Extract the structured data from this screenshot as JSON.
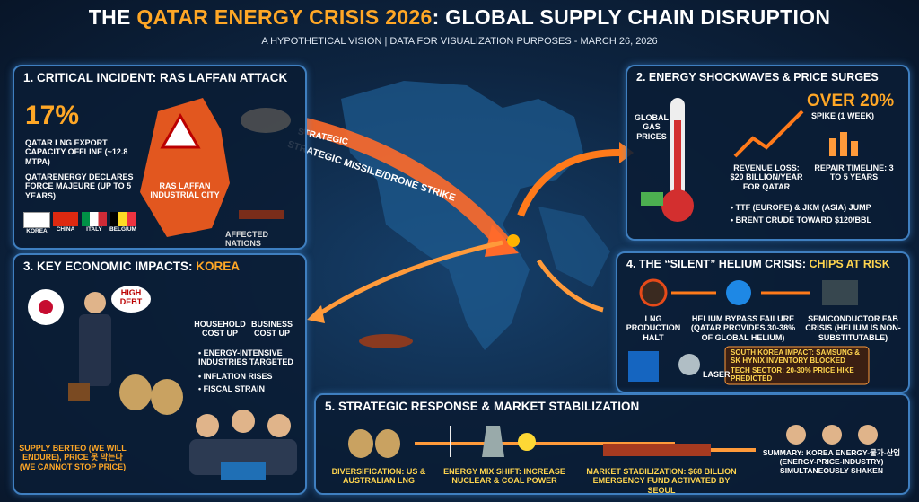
{
  "header": {
    "title_start": "THE ",
    "title_highlight": "QATAR ENERGY CRISIS 2026",
    "title_end": ": GLOBAL SUPPLY CHAIN DISRUPTION",
    "subtitle": "A HYPOTHETICAL VISION | DATA FOR VISUALIZATION PURPOSES - MARCH 26, 2026"
  },
  "map": {
    "label_small": "STRATEGIC",
    "label_main": "STRATEGIC MISSILE/DRONE STRIKE"
  },
  "panel1": {
    "heading": "1. CRITICAL INCIDENT: RAS LAFFAN ATTACK",
    "stat": "17%",
    "stat_label": "QATAR LNG EXPORT CAPACITY OFFLINE (~12.8 MTPA)",
    "force_majeure": "QATARENERGY DECLARES FORCE MAJEURE (UP TO 5 YEARS)",
    "city": "RAS LAFFAN INDUSTRIAL CITY",
    "affected": "AFFECTED NATIONS",
    "nations": [
      "KOREA",
      "CHINA",
      "ITALY",
      "BELGIUM"
    ]
  },
  "panel2": {
    "heading": "2. ENERGY SHOCKWAVES & PRICE SURGES",
    "gas_label": "GLOBAL GAS PRICES",
    "spike": "OVER 20%",
    "spike_label": "SPIKE (1 WEEK)",
    "revenue_loss": "REVENUE LOSS: $20 BILLION/YEAR FOR QATAR",
    "repair": "REPAIR TIMELINE: 3 TO 5 YEARS",
    "bullets": [
      "TTF (EUROPE) & JKM (ASIA) JUMP",
      "BRENT CRUDE TOWARD $120/BBL"
    ]
  },
  "panel3": {
    "heading_start": "3. KEY ECONOMIC IMPACTS: ",
    "heading_highlight": "KOREA",
    "high_debt": "HIGH DEBT",
    "household": "HOUSEHOLD COST UP",
    "business": "BUSINESS COST UP",
    "bullets": [
      "ENERGY-INTENSIVE INDUSTRIES TARGETED",
      "INFLATION RISES",
      "FISCAL STRAIN"
    ],
    "quote": "SUPPLY BERTEO (WE WILL ENDURE), PRICE 못 막는다 (WE CANNOT STOP PRICE)"
  },
  "panel4": {
    "heading_start": "4. THE “SILENT” HELIUM CRISIS: ",
    "heading_highlight": "CHIPS AT RISK",
    "steps": [
      "LNG PRODUCTION HALT",
      "HELIUM BYPASS FAILURE (QATAR PROVIDES 30-38% OF GLOBAL HELIUM)",
      "SEMICONDUCTOR FAB CRISIS (HELIUM IS NON-SUBSTITUTABLE)"
    ],
    "laser": "LASER",
    "impacts": [
      "SOUTH KOREA IMPACT: SAMSUNG & SK HYNIX INVENTORY BLOCKED",
      "TECH SECTOR: 20-30% PRICE HIKE PREDICTED"
    ]
  },
  "panel5": {
    "heading": "5. STRATEGIC RESPONSE & MARKET STABILIZATION",
    "items": [
      "DIVERSIFICATION: US & AUSTRALIAN LNG",
      "ENERGY MIX SHIFT: INCREASE NUCLEAR & COAL POWER",
      "MARKET STABILIZATION: $68 BILLION EMERGENCY FUND ACTIVATED BY SEOUL"
    ],
    "summary": "SUMMARY: KOREA ENERGY-물가-산업 (ENERGY-PRICE-INDUSTRY) SIMULTANEOUSLY SHAKEN"
  }
}
